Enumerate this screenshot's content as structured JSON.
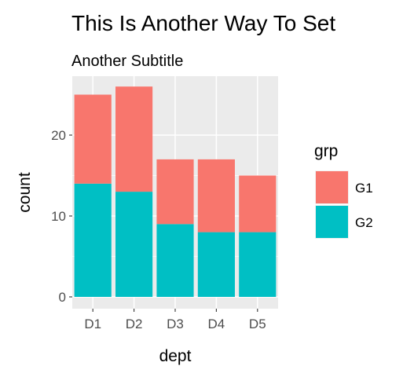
{
  "chart_data": {
    "type": "bar",
    "stacked": true,
    "title": "This Is Another Way To Set",
    "subtitle": "Another Subtitle",
    "xlabel": "dept",
    "ylabel": "count",
    "categories": [
      "D1",
      "D2",
      "D3",
      "D4",
      "D5"
    ],
    "series": [
      {
        "name": "G1",
        "values": [
          11,
          13,
          8,
          9,
          7
        ],
        "color": "#F8766D"
      },
      {
        "name": "G2",
        "values": [
          14,
          13,
          9,
          8,
          8
        ],
        "color": "#00BFC4"
      }
    ],
    "stack_order_top_to_bottom": [
      "G1",
      "G2"
    ],
    "ylim": [
      0,
      26
    ],
    "yticks": [
      0,
      10,
      20
    ],
    "grid": true,
    "legend": {
      "title": "grp",
      "position": "right",
      "items": [
        "G1",
        "G2"
      ]
    },
    "colors": {
      "panel_background": "#EBEBEB",
      "grid": "#FFFFFF",
      "tick_text": "#4D4D4D"
    }
  }
}
